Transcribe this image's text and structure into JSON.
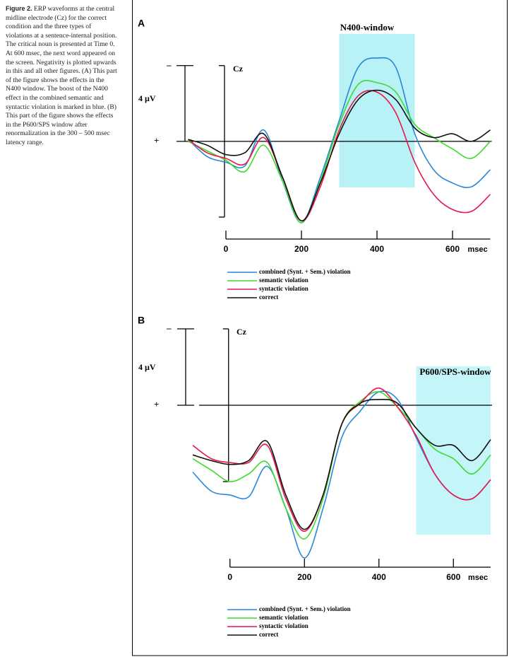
{
  "caption": {
    "label": "Figure 2.",
    "text": "ERP waveforms at the central midline electrode (Cz) for the correct condition and the three types of violations at a sentence-internal position. The critical noun is presented at Time 0. At 600 msec, the next word appeared on the screen. Negativity is plotted upwards in this and all other figures. (A) This part of the figure shows the effects in the N400 window. The boost of the N400 effect in the combined semantic and syntactic violation is marked in blue. (B) This part of the figure shows the effects in the P600/SPS window after renormalization in the 300 – 500 msec latency range."
  },
  "chart_data": [
    {
      "type": "line",
      "panel_label": "A",
      "title": "N400-window",
      "electrode": "Cz",
      "neg_label": "–",
      "pos_label": "+",
      "scale_bar": {
        "value": 4,
        "label": "4 µV"
      },
      "x_unit": "msec",
      "window": [
        300,
        500
      ],
      "window_color": "#b8f2f6",
      "xlim": [
        -100,
        700
      ],
      "ylim": [
        6,
        -5
      ],
      "xticks": [
        0,
        200,
        400,
        600
      ],
      "x": [
        -100,
        -50,
        0,
        50,
        100,
        150,
        200,
        250,
        300,
        350,
        400,
        450,
        500,
        550,
        600,
        650,
        700
      ],
      "series": [
        {
          "name": "combined (Synt. + Sem.) violation",
          "color": "#2a86d8",
          "values": [
            -0.1,
            0.8,
            1.1,
            1.3,
            -0.6,
            2.1,
            4.3,
            1.9,
            -1.1,
            -3.9,
            -4.4,
            -3.9,
            -0.4,
            1.5,
            2.2,
            2.4,
            1.5
          ]
        },
        {
          "name": "semantic violation",
          "color": "#3ddc2a",
          "values": [
            0,
            0.5,
            1.0,
            1.6,
            0.2,
            2.1,
            4.3,
            2.1,
            -0.9,
            -3.0,
            -3.1,
            -2.6,
            -0.9,
            -0.2,
            0.4,
            0.9,
            0
          ]
        },
        {
          "name": "syntactic violation",
          "color": "#e8174a",
          "values": [
            -0.1,
            0.6,
            0.9,
            1.2,
            -0.2,
            1.9,
            4.2,
            2.4,
            -0.6,
            -2.4,
            -2.6,
            -1.5,
            1.1,
            2.8,
            3.6,
            3.7,
            2.8
          ]
        },
        {
          "name": "correct",
          "color": "#111111",
          "values": [
            -0.1,
            0.2,
            0.7,
            0.6,
            -0.4,
            1.9,
            4.2,
            2.2,
            -0.4,
            -2.2,
            -2.7,
            -2.2,
            -0.7,
            -0.2,
            -0.4,
            0,
            -0.6
          ]
        }
      ]
    },
    {
      "type": "line",
      "panel_label": "B",
      "title": "P600/SPS-window",
      "electrode": "Cz",
      "neg_label": "–",
      "pos_label": "+",
      "scale_bar": {
        "value": 4,
        "label": "4 µV"
      },
      "x_unit": "msec",
      "window": [
        500,
        700
      ],
      "window_color": "#c4f5f8",
      "xlim": [
        -100,
        700
      ],
      "ylim": [
        9,
        -5
      ],
      "xticks": [
        0,
        200,
        400,
        600
      ],
      "x": [
        -100,
        -50,
        0,
        50,
        100,
        150,
        200,
        250,
        300,
        350,
        400,
        450,
        500,
        550,
        600,
        650,
        700
      ],
      "series": [
        {
          "name": "combined (Synt. + Sem.) violation",
          "color": "#2a86d8",
          "values": [
            3.5,
            4.5,
            4.7,
            4.8,
            3.2,
            5.4,
            8.0,
            5.4,
            1.7,
            0.3,
            -0.7,
            -0.3,
            1.7,
            3.6,
            4.7,
            4.9,
            3.9
          ]
        },
        {
          "name": "semantic violation",
          "color": "#3ddc2a",
          "values": [
            2.8,
            3.4,
            4.0,
            3.6,
            3.0,
            5.4,
            7.0,
            4.9,
            1.0,
            -0.2,
            -0.7,
            0.1,
            1.2,
            2.3,
            2.8,
            3.6,
            2.6
          ]
        },
        {
          "name": "syntactic violation",
          "color": "#e8174a",
          "values": [
            2.1,
            2.8,
            3.0,
            3.0,
            2.1,
            4.9,
            6.6,
            4.7,
            1.0,
            -0.1,
            -0.9,
            0.1,
            1.6,
            3.6,
            4.7,
            4.9,
            3.9
          ]
        },
        {
          "name": "correct",
          "color": "#111111",
          "values": [
            2.6,
            2.9,
            3.1,
            2.9,
            1.9,
            4.7,
            6.5,
            4.7,
            1.0,
            -0.1,
            -0.3,
            -0.1,
            1.2,
            2.1,
            2.1,
            2.9,
            1.8
          ]
        }
      ]
    }
  ]
}
